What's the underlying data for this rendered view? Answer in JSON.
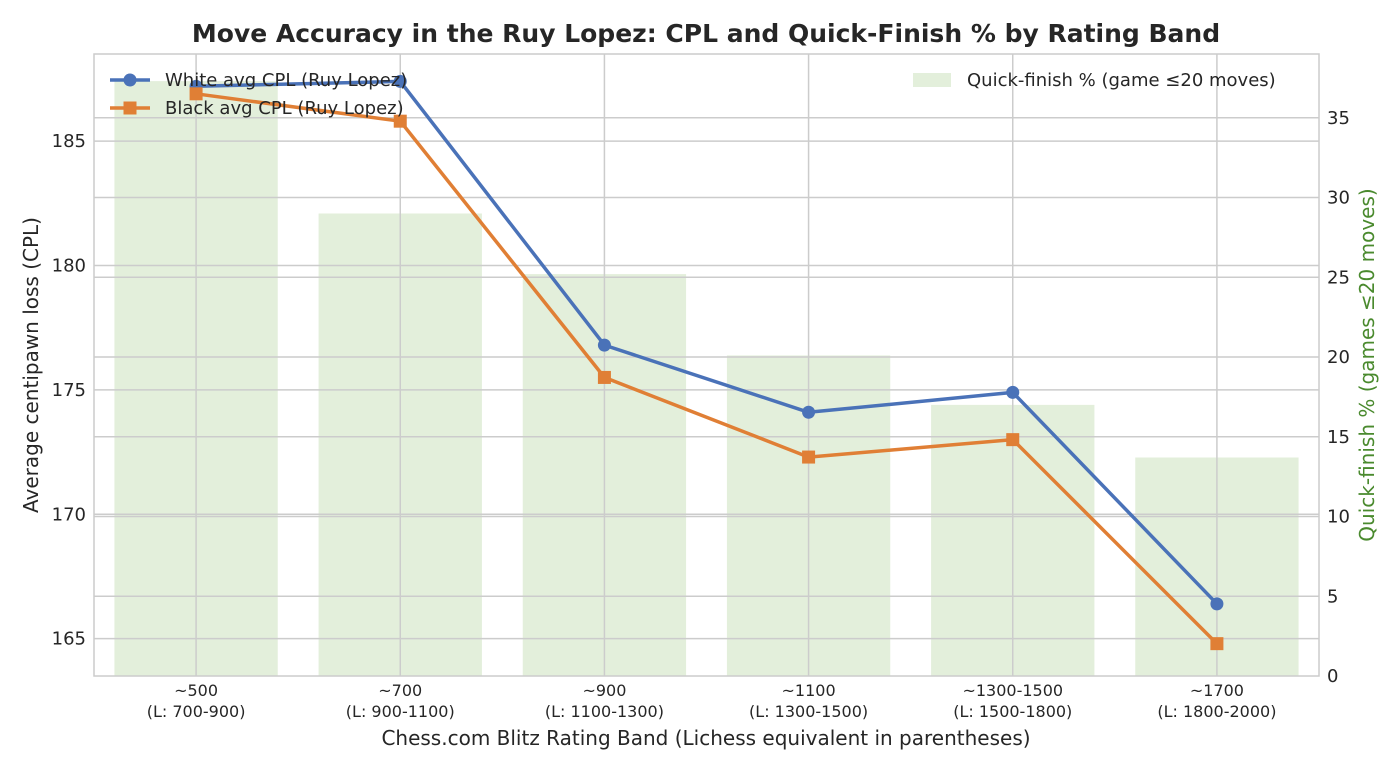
{
  "chart_data": {
    "type": "bar+line",
    "title": "Move Accuracy in the Ruy Lopez: CPL and Quick-Finish % by Rating Band",
    "xlabel": "Chess.com Blitz Rating Band (Lichess equivalent in parentheses)",
    "ylabel_left": "Average centipawn loss (CPL)",
    "ylabel_right": "Quick-finish % (games ≤20 moves)",
    "categories": [
      {
        "label": "~500",
        "sublabel": "(L: 700-900)"
      },
      {
        "label": "~700",
        "sublabel": "(L: 900-1100)"
      },
      {
        "label": "~900",
        "sublabel": "(L: 1100-1300)"
      },
      {
        "label": "~1100",
        "sublabel": "(L: 1300-1500)"
      },
      {
        "label": "~1300-1500",
        "sublabel": "(L: 1500-1800)"
      },
      {
        "label": "~1700",
        "sublabel": "(L: 1800-2000)"
      }
    ],
    "left_axis": {
      "ylim": [
        163.5,
        188.5
      ],
      "ticks": [
        165,
        170,
        175,
        180,
        185
      ]
    },
    "right_axis": {
      "ylim": [
        0,
        39
      ],
      "ticks": [
        0,
        5,
        10,
        15,
        20,
        25,
        30,
        35
      ]
    },
    "bars": {
      "name": "Quick-finish % (game ≤20 moves)",
      "axis": "right",
      "color": "#e3efdb",
      "values": [
        37.3,
        29.0,
        25.2,
        20.1,
        17.0,
        13.7
      ]
    },
    "series": [
      {
        "name": "White avg CPL (Ruy Lopez)",
        "axis": "left",
        "color": "#4a72b8",
        "marker": "circle",
        "values": [
          187.2,
          187.4,
          176.8,
          174.1,
          174.9,
          166.4
        ]
      },
      {
        "name": "Black avg CPL (Ruy Lopez)",
        "axis": "left",
        "color": "#e07f35",
        "marker": "square",
        "values": [
          186.9,
          185.8,
          175.5,
          172.3,
          173.0,
          164.8
        ]
      }
    ],
    "grid": true,
    "legend_left": "top-left",
    "legend_right": "top-right",
    "colors": {
      "right_axis_label": "#4a8a2e",
      "grid": "#cccccc",
      "axis_frame": "#cccccc",
      "text": "#262626"
    }
  }
}
